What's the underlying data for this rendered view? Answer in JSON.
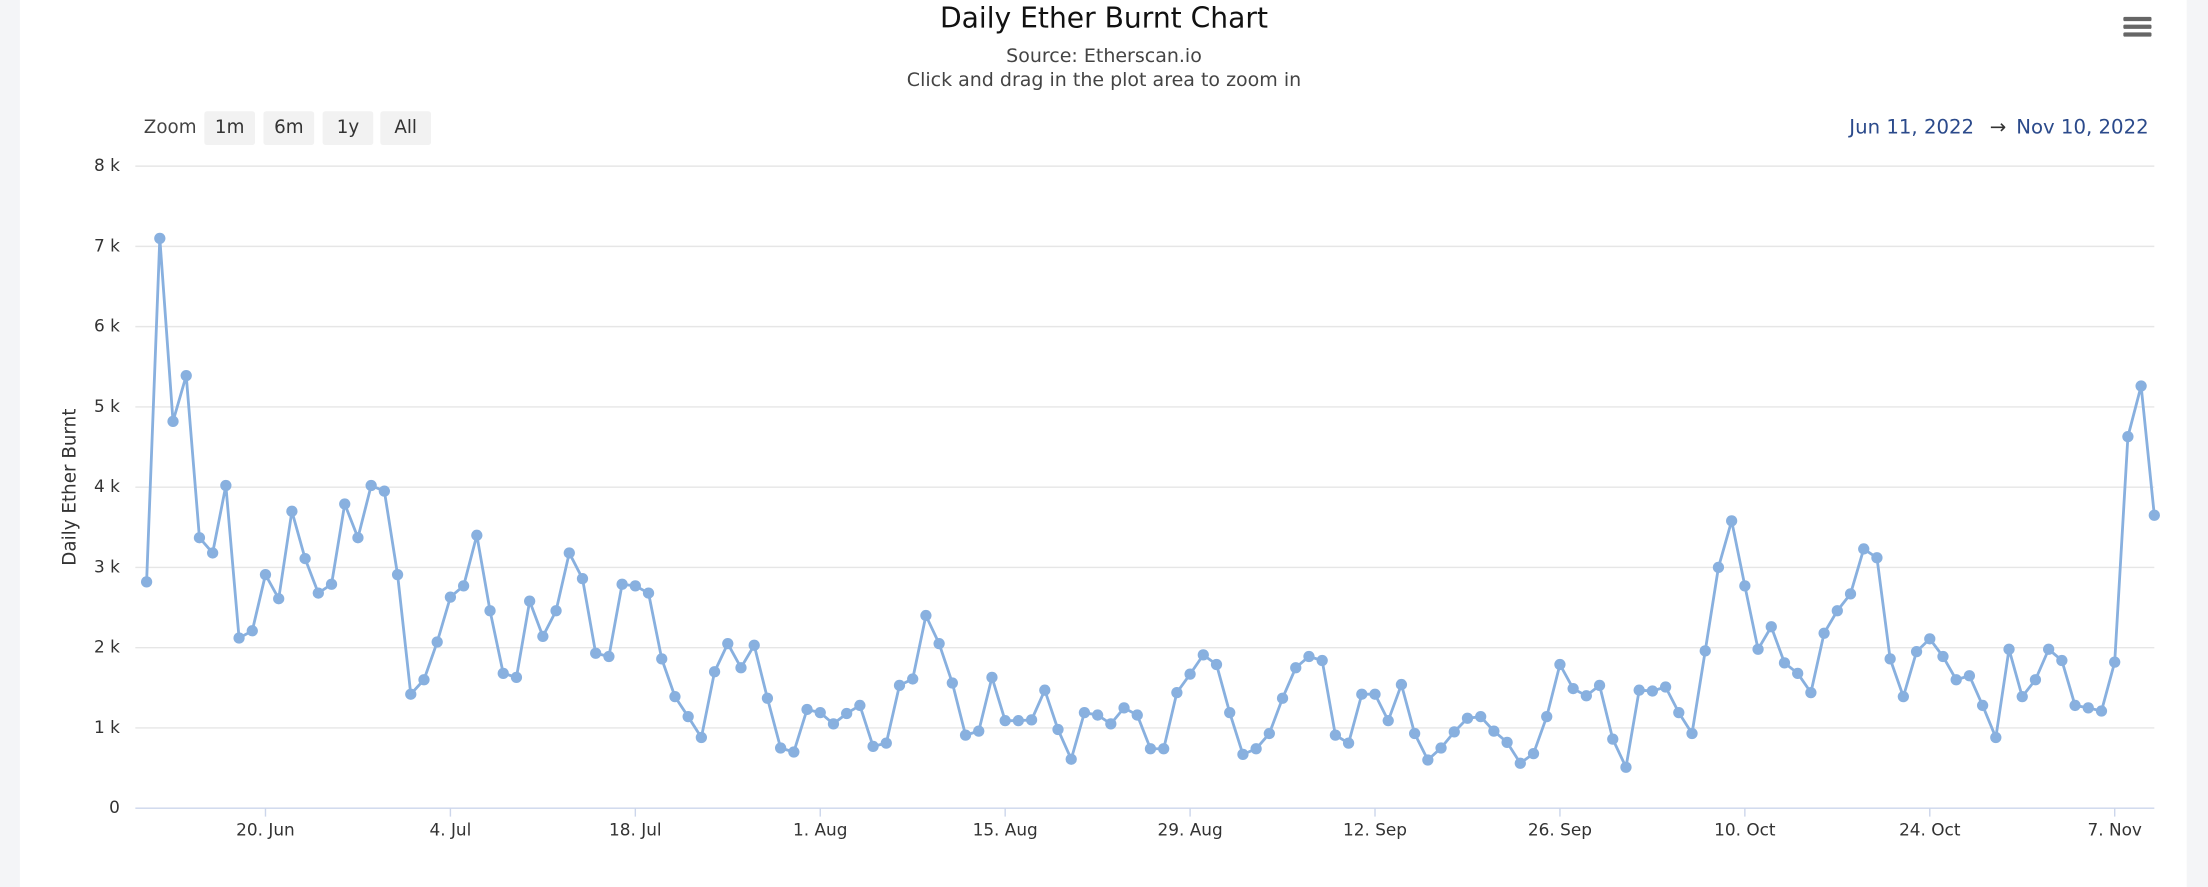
{
  "range_selector": {
    "zoom_label": "Zoom",
    "buttons": [
      "1m",
      "6m",
      "1y",
      "All"
    ],
    "from": "Jun 11, 2022",
    "separator": "→",
    "to": "Nov 10, 2022"
  },
  "chart_data": {
    "type": "line",
    "title": "Daily Ether Burnt Chart",
    "subtitle": "Source: Etherscan.io",
    "caption": "Click and drag in the plot area to zoom in",
    "y_label": "Daily Ether Burnt",
    "color": "#88b0df",
    "grid": true,
    "markers": true,
    "xlim": [
      "2022-06-11",
      "2022-11-10"
    ],
    "xticks": [
      {
        "value": "2022-06-20",
        "label": "20. Jun"
      },
      {
        "value": "2022-07-04",
        "label": "4. Jul"
      },
      {
        "value": "2022-07-18",
        "label": "18. Jul"
      },
      {
        "value": "2022-08-01",
        "label": "1. Aug"
      },
      {
        "value": "2022-08-15",
        "label": "15. Aug"
      },
      {
        "value": "2022-08-29",
        "label": "29. Aug"
      },
      {
        "value": "2022-09-12",
        "label": "12. Sep"
      },
      {
        "value": "2022-09-26",
        "label": "26. Sep"
      },
      {
        "value": "2022-10-10",
        "label": "10. Oct"
      },
      {
        "value": "2022-10-24",
        "label": "24. Oct"
      },
      {
        "value": "2022-11-07",
        "label": "7. Nov"
      }
    ],
    "ylim": [
      0,
      8000
    ],
    "yticks": [
      0,
      {
        "value": 1000,
        "label": "1 k"
      },
      {
        "value": 2000,
        "label": "2 k"
      },
      {
        "value": 3000,
        "label": "3 k"
      },
      {
        "value": 4000,
        "label": "4 k"
      },
      {
        "value": 5000,
        "label": "5 k"
      },
      {
        "value": 6000,
        "label": "6 k"
      },
      {
        "value": 7000,
        "label": "7 k"
      },
      {
        "value": 8000,
        "label": "8 k"
      }
    ],
    "x": [
      "2022-06-11",
      "2022-06-12",
      "2022-06-13",
      "2022-06-14",
      "2022-06-15",
      "2022-06-16",
      "2022-06-17",
      "2022-06-18",
      "2022-06-19",
      "2022-06-20",
      "2022-06-21",
      "2022-06-22",
      "2022-06-23",
      "2022-06-24",
      "2022-06-25",
      "2022-06-26",
      "2022-06-27",
      "2022-06-28",
      "2022-06-29",
      "2022-06-30",
      "2022-07-01",
      "2022-07-02",
      "2022-07-03",
      "2022-07-04",
      "2022-07-05",
      "2022-07-06",
      "2022-07-07",
      "2022-07-08",
      "2022-07-09",
      "2022-07-10",
      "2022-07-11",
      "2022-07-12",
      "2022-07-13",
      "2022-07-14",
      "2022-07-15",
      "2022-07-16",
      "2022-07-17",
      "2022-07-18",
      "2022-07-19",
      "2022-07-20",
      "2022-07-21",
      "2022-07-22",
      "2022-07-23",
      "2022-07-24",
      "2022-07-25",
      "2022-07-26",
      "2022-07-27",
      "2022-07-28",
      "2022-07-29",
      "2022-07-30",
      "2022-07-31",
      "2022-08-01",
      "2022-08-02",
      "2022-08-03",
      "2022-08-04",
      "2022-08-05",
      "2022-08-06",
      "2022-08-07",
      "2022-08-08",
      "2022-08-09",
      "2022-08-10",
      "2022-08-11",
      "2022-08-12",
      "2022-08-13",
      "2022-08-14",
      "2022-08-15",
      "2022-08-16",
      "2022-08-17",
      "2022-08-18",
      "2022-08-19",
      "2022-08-20",
      "2022-08-21",
      "2022-08-22",
      "2022-08-23",
      "2022-08-24",
      "2022-08-25",
      "2022-08-26",
      "2022-08-27",
      "2022-08-28",
      "2022-08-29",
      "2022-08-30",
      "2022-08-31",
      "2022-09-01",
      "2022-09-02",
      "2022-09-03",
      "2022-09-04",
      "2022-09-05",
      "2022-09-06",
      "2022-09-07",
      "2022-09-08",
      "2022-09-09",
      "2022-09-10",
      "2022-09-11",
      "2022-09-12",
      "2022-09-13",
      "2022-09-14",
      "2022-09-15",
      "2022-09-16",
      "2022-09-17",
      "2022-09-18",
      "2022-09-19",
      "2022-09-20",
      "2022-09-21",
      "2022-09-22",
      "2022-09-23",
      "2022-09-24",
      "2022-09-25",
      "2022-09-26",
      "2022-09-27",
      "2022-09-28",
      "2022-09-29",
      "2022-09-30",
      "2022-10-01",
      "2022-10-02",
      "2022-10-03",
      "2022-10-04",
      "2022-10-05",
      "2022-10-06",
      "2022-10-07",
      "2022-10-08",
      "2022-10-09",
      "2022-10-10",
      "2022-10-11",
      "2022-10-12",
      "2022-10-13",
      "2022-10-14",
      "2022-10-15",
      "2022-10-16",
      "2022-10-17",
      "2022-10-18",
      "2022-10-19",
      "2022-10-20",
      "2022-10-21",
      "2022-10-22",
      "2022-10-23",
      "2022-10-24",
      "2022-10-25",
      "2022-10-26",
      "2022-10-27",
      "2022-10-28",
      "2022-10-29",
      "2022-10-30",
      "2022-10-31",
      "2022-11-01",
      "2022-11-02",
      "2022-11-03",
      "2022-11-04",
      "2022-11-05",
      "2022-11-06",
      "2022-11-07",
      "2022-11-08",
      "2022-11-09",
      "2022-11-10"
    ],
    "values": [
      2820,
      7100,
      4820,
      5390,
      3370,
      3180,
      4020,
      2120,
      2210,
      2910,
      2610,
      3700,
      3110,
      2680,
      2790,
      3790,
      3370,
      4020,
      3950,
      2910,
      1420,
      1600,
      2070,
      2630,
      2770,
      3400,
      2460,
      1680,
      1630,
      2580,
      2140,
      2460,
      3180,
      2860,
      1930,
      1890,
      2790,
      2770,
      2680,
      1860,
      1390,
      1140,
      880,
      1700,
      2050,
      1750,
      2030,
      1370,
      750,
      700,
      1230,
      1190,
      1050,
      1180,
      1280,
      770,
      810,
      1530,
      1610,
      2400,
      2050,
      1560,
      910,
      960,
      1630,
      1090,
      1090,
      1100,
      1470,
      980,
      610,
      1190,
      1160,
      1050,
      1250,
      1160,
      740,
      740,
      1440,
      1670,
      1910,
      1790,
      1190,
      670,
      740,
      930,
      1370,
      1750,
      1890,
      1840,
      910,
      810,
      1420,
      1420,
      1090,
      1540,
      930,
      600,
      750,
      950,
      1120,
      1140,
      960,
      820,
      560,
      680,
      1140,
      1790,
      1490,
      1400,
      1530,
      860,
      510,
      1470,
      1460,
      1510,
      1190,
      930,
      1960,
      3000,
      3580,
      2770,
      1980,
      2260,
      1810,
      1680,
      1440,
      2180,
      2460,
      2670,
      3230,
      3120,
      1860,
      1390,
      1950,
      2110,
      1890,
      1600,
      1650,
      1280,
      880,
      1980,
      1390,
      1600,
      1980,
      1840,
      1280,
      1250,
      1210,
      1820,
      4630,
      5260,
      3650
    ]
  }
}
